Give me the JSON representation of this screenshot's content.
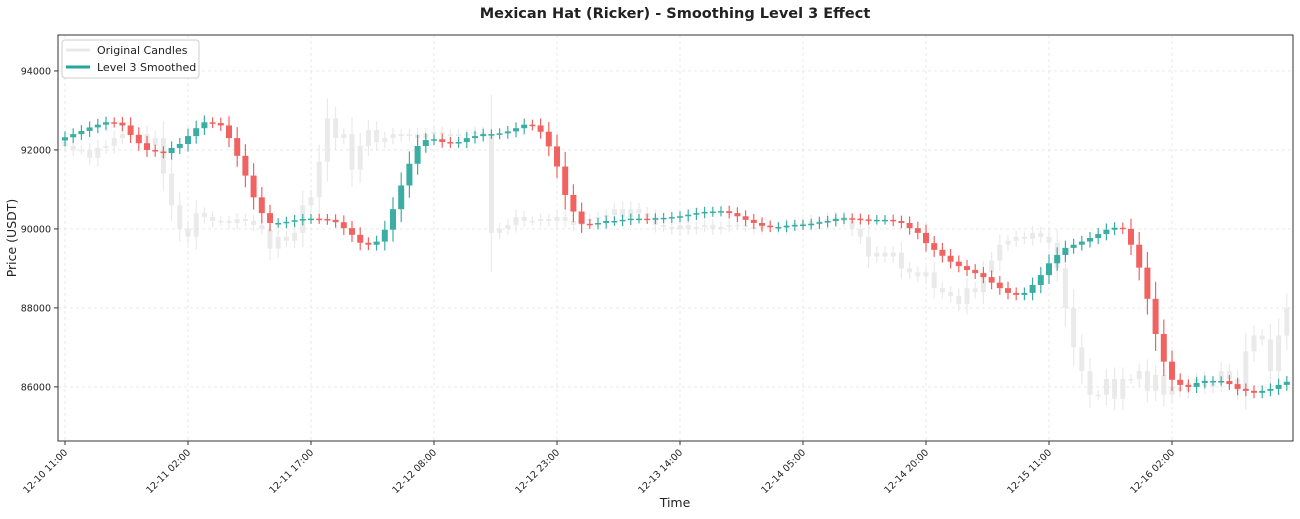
{
  "chart_data": {
    "type": "candlestick",
    "title": "Mexican Hat (Ricker) - Smoothing Level 3 Effect",
    "xlabel": "Time",
    "ylabel": "Price (USDT)",
    "ylim": [
      84630,
      94910
    ],
    "yticks": [
      86000,
      88000,
      90000,
      92000,
      94000
    ],
    "ytick_labels": [
      "86000",
      "88000",
      "90000",
      "92000",
      "94000"
    ],
    "interval": "1 hour",
    "start_time": "12-10 11:00",
    "xticks": [
      {
        "index": 0,
        "label": "12-10 11:00"
      },
      {
        "index": 15,
        "label": "12-11 02:00"
      },
      {
        "index": 30,
        "label": "12-11 17:00"
      },
      {
        "index": 45,
        "label": "12-12 08:00"
      },
      {
        "index": 60,
        "label": "12-12 23:00"
      },
      {
        "index": 75,
        "label": "12-13 14:00"
      },
      {
        "index": 90,
        "label": "12-14 05:00"
      },
      {
        "index": 105,
        "label": "12-14 20:00"
      },
      {
        "index": 120,
        "label": "12-15 11:00"
      },
      {
        "index": 135,
        "label": "12-16 02:00"
      }
    ],
    "grid": true,
    "legend_position": "top-left",
    "legend": [
      "Original Candles",
      "Level 3 Smoothed"
    ],
    "colors": {
      "up": "#26a69a",
      "down": "#ef5350",
      "original": "#e3e3e3"
    },
    "series": [
      {
        "name": "Original Candles",
        "close": [
          92100,
          92000,
          92000,
          91800,
          92050,
          92100,
          92300,
          92400,
          92400,
          92400,
          92100,
          92300,
          91400,
          90600,
          90000,
          89800,
          90400,
          90300,
          90200,
          90200,
          90150,
          90250,
          90200,
          90100,
          90000,
          89500,
          89800,
          89700,
          89900,
          90600,
          90800,
          91700,
          92800,
          92300,
          92400,
          91500,
          92100,
          92500,
          92200,
          92300,
          92400,
          92350,
          92400,
          92300,
          92400,
          92450,
          92400,
          92350,
          92400,
          92400,
          92450,
          92400,
          89900,
          90000,
          90100,
          90300,
          90200,
          90200,
          90250,
          90200,
          90300,
          90200,
          90100,
          90200,
          90250,
          90300,
          90350,
          90500,
          90300,
          90500,
          90400,
          90300,
          90100,
          90050,
          90000,
          90100,
          90000,
          90050,
          90100,
          90000,
          90050,
          90100,
          90100,
          90050,
          90000,
          90100,
          90050,
          90000,
          90100,
          90150,
          90100,
          90200,
          90150,
          90250,
          90300,
          90200,
          90000,
          89800,
          89300,
          89400,
          89300,
          89400,
          89000,
          88900,
          88800,
          88900,
          88500,
          88400,
          88300,
          88100,
          88500,
          88400,
          88900,
          89200,
          89600,
          89700,
          89800,
          89750,
          89900,
          89800,
          89650,
          89000,
          88000,
          87000,
          86400,
          85800,
          85800,
          86200,
          85700,
          86200,
          86200,
          86400,
          85900,
          86300,
          85800,
          86000,
          85900,
          86100,
          86200,
          86000,
          86100,
          86400,
          86200,
          85900,
          86900,
          87300,
          87200,
          86400,
          87300,
          88000
        ]
      },
      {
        "name": "Level 3 Smoothed",
        "close": [
          92320,
          92400,
          92480,
          92570,
          92640,
          92700,
          92690,
          92620,
          92380,
          92170,
          92000,
          91960,
          91920,
          92050,
          92150,
          92350,
          92550,
          92700,
          92680,
          92620,
          92300,
          91850,
          91350,
          90800,
          90400,
          90150,
          90150,
          90180,
          90220,
          90250,
          90260,
          90250,
          90230,
          90170,
          90020,
          89850,
          89650,
          89600,
          89680,
          89980,
          90500,
          91100,
          91650,
          92100,
          92250,
          92270,
          92200,
          92180,
          92200,
          92300,
          92350,
          92400,
          92400,
          92420,
          92470,
          92550,
          92640,
          92620,
          92460,
          92090,
          91580,
          90860,
          90440,
          90130,
          90120,
          90150,
          90200,
          90200,
          90230,
          90260,
          90260,
          90250,
          90270,
          90280,
          90300,
          90320,
          90360,
          90400,
          90430,
          90440,
          90450,
          90400,
          90320,
          90230,
          90150,
          90080,
          90050,
          90050,
          90080,
          90100,
          90110,
          90130,
          90170,
          90200,
          90250,
          90270,
          90260,
          90240,
          90230,
          90230,
          90230,
          90200,
          90150,
          90020,
          89900,
          89640,
          89470,
          89320,
          89170,
          89060,
          88960,
          88880,
          88780,
          88640,
          88500,
          88380,
          88330,
          88380,
          88580,
          88830,
          89130,
          89340,
          89520,
          89600,
          89680,
          89770,
          89870,
          89980,
          90030,
          90000,
          89600,
          89020,
          88230,
          87340,
          86640,
          86180,
          86050,
          86000,
          86100,
          86150,
          86150,
          86150,
          86070,
          85950,
          85900,
          85850,
          85900,
          85950,
          86050,
          86130
        ]
      }
    ]
  }
}
